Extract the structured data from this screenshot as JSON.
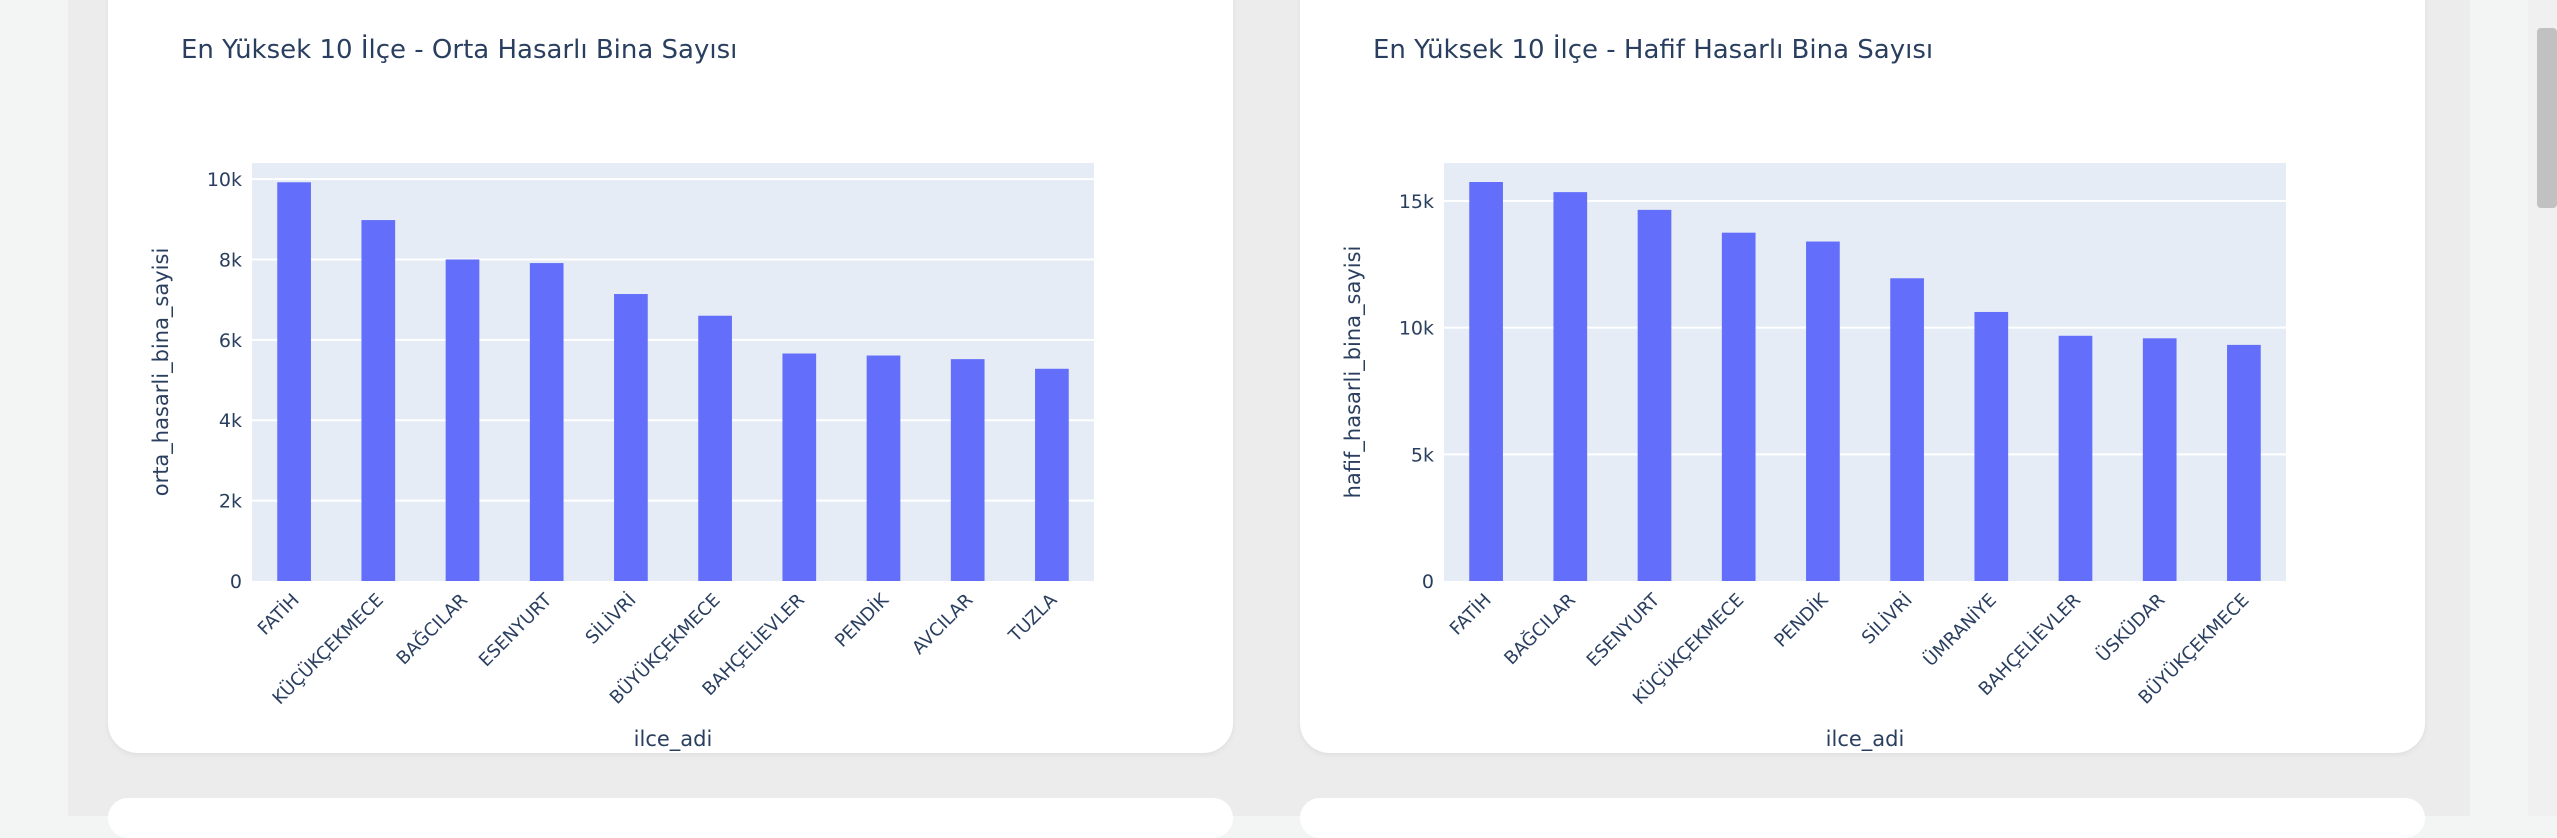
{
  "colors": {
    "bar": "#636efa",
    "plot_bg": "#e5ecf6",
    "text": "#2a3f5f",
    "grid": "#ffffff"
  },
  "chart_data": [
    {
      "type": "bar",
      "title": "En Yüksek 10 İlçe - Orta Hasarlı Bina Sayısı",
      "xlabel": "ilce_adi",
      "ylabel": "orta_hasarli_bina_sayisi",
      "ylim": [
        0,
        10400
      ],
      "ytick_values": [
        0,
        2000,
        4000,
        6000,
        8000,
        10000
      ],
      "ytick_labels": [
        "0",
        "2k",
        "4k",
        "6k",
        "8k",
        "10k"
      ],
      "grid": true,
      "categories": [
        "FATİH",
        "KÜÇÜKÇEKMECE",
        "BAĞCILAR",
        "ESENYURT",
        "SİLİVRİ",
        "BÜYÜKÇEKMECE",
        "BAHÇELİEVLER",
        "PENDİK",
        "AVCILAR",
        "TUZLA"
      ],
      "values": [
        9920,
        8980,
        8000,
        7910,
        7140,
        6600,
        5660,
        5610,
        5520,
        5280
      ]
    },
    {
      "type": "bar",
      "title": "En Yüksek 10 İlçe - Hafif Hasarlı Bina Sayısı",
      "xlabel": "ilce_adi",
      "ylabel": "hafif_hasarli_bina_sayisi",
      "ylim": [
        0,
        16500
      ],
      "ytick_values": [
        0,
        5000,
        10000,
        15000
      ],
      "ytick_labels": [
        "0",
        "5k",
        "10k",
        "15k"
      ],
      "grid": true,
      "categories": [
        "FATİH",
        "BAĞCILAR",
        "ESENYURT",
        "KÜÇÜKÇEKMECE",
        "PENDİK",
        "SİLİVRİ",
        "ÜMRANİYE",
        "BAHÇELİEVLER",
        "ÜSKÜDAR",
        "BÜYÜKÇEKMECE"
      ],
      "values": [
        15750,
        15350,
        14650,
        13750,
        13400,
        11950,
        10620,
        9680,
        9580,
        9320
      ]
    }
  ]
}
